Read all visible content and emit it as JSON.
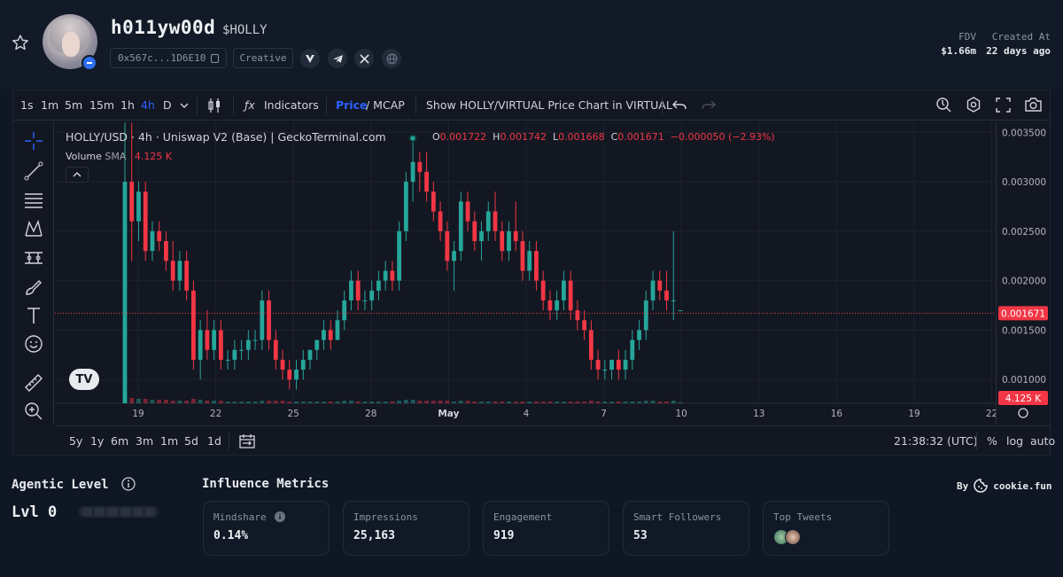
{
  "token": {
    "name": "h011yw00d",
    "ticker": "$HOLLY",
    "address": "0x567c...1D6E10",
    "tag": "Creative",
    "social_icons": [
      "virtuals-icon",
      "telegram-icon",
      "x-icon",
      "globe-icon"
    ]
  },
  "stats": {
    "fdv_label": "FDV",
    "fdv_value": "$1.66m",
    "created_label": "Created At",
    "created_value": "22 days ago"
  },
  "toolbar": {
    "intervals": [
      "1s",
      "1m",
      "5m",
      "15m",
      "1h",
      "4h",
      "D"
    ],
    "active_interval": "4h",
    "indicators_label": "Indicators",
    "price_label": "Price",
    "mcap_label": "/ MCAP",
    "show_virtual_label": "Show HOLLY/VIRTUAL Price Chart in VIRTUAL"
  },
  "legend": {
    "title": "HOLLY/USD · 4h · Uniswap V2 (Base) | GeckoTerminal.com",
    "o_label": "O",
    "o": "0.001722",
    "h_label": "H",
    "h": "0.001742",
    "l_label": "L",
    "l": "0.001668",
    "c_label": "C",
    "c": "0.001671",
    "change": "−0.000050 (−2.93%)",
    "volume_label": "Volume",
    "volume_ma": "SMA",
    "volume_value": "4.125 K"
  },
  "bottom_toolbar": {
    "ranges": [
      "5y",
      "1y",
      "6m",
      "3m",
      "1m",
      "5d",
      "1d"
    ],
    "time": "21:38:32 (UTC)",
    "pct": "%",
    "log": "log",
    "auto": "auto"
  },
  "colors": {
    "up": "#26a69a",
    "down": "#f23645",
    "accent": "#2962ff"
  },
  "chart_data": {
    "type": "candlestick",
    "title": "HOLLY/USD · 4h · Uniswap V2 (Base) | GeckoTerminal.com",
    "x_tick_labels": [
      "19",
      "22",
      "25",
      "28",
      "May",
      "4",
      "7",
      "10",
      "13",
      "16",
      "19",
      "22"
    ],
    "y_tick_labels": [
      "0.001000",
      "0.001500",
      "0.002000",
      "0.002500",
      "0.003000",
      "0.003500"
    ],
    "ylim": [
      0.00076,
      0.00361
    ],
    "last_price_label": "0.001671",
    "last_price": 0.001671,
    "volume_label": "4.125 K",
    "grid": true,
    "series": [
      {
        "name": "HOLLY/USD",
        "ohlc": [
          [
            0.0002,
            0.0036,
            0.0002,
            0.003
          ],
          [
            0.003,
            0.0036,
            0.0022,
            0.0026
          ],
          [
            0.0026,
            0.003,
            0.0024,
            0.0029
          ],
          [
            0.0029,
            0.003,
            0.0022,
            0.0023
          ],
          [
            0.0023,
            0.0026,
            0.0022,
            0.0025
          ],
          [
            0.0025,
            0.0026,
            0.0023,
            0.0024
          ],
          [
            0.0024,
            0.0025,
            0.0021,
            0.0022
          ],
          [
            0.0022,
            0.0024,
            0.0019,
            0.002
          ],
          [
            0.002,
            0.0023,
            0.0019,
            0.0022
          ],
          [
            0.0022,
            0.0023,
            0.0018,
            0.0019
          ],
          [
            0.0019,
            0.002,
            0.0011,
            0.0012
          ],
          [
            0.0012,
            0.0016,
            0.001,
            0.0015
          ],
          [
            0.0015,
            0.0017,
            0.0012,
            0.0013
          ],
          [
            0.0013,
            0.0016,
            0.0012,
            0.0015
          ],
          [
            0.0015,
            0.0016,
            0.0011,
            0.0012
          ],
          [
            0.0012,
            0.0013,
            0.0011,
            0.0012
          ],
          [
            0.0012,
            0.0014,
            0.0011,
            0.0013
          ],
          [
            0.0013,
            0.0014,
            0.0012,
            0.0013
          ],
          [
            0.0013,
            0.0015,
            0.0012,
            0.0014
          ],
          [
            0.0014,
            0.0015,
            0.0013,
            0.0014
          ],
          [
            0.0014,
            0.0019,
            0.0013,
            0.0018
          ],
          [
            0.0018,
            0.0019,
            0.0013,
            0.0014
          ],
          [
            0.0014,
            0.0015,
            0.0011,
            0.0012
          ],
          [
            0.0012,
            0.0013,
            0.001,
            0.0011
          ],
          [
            0.0011,
            0.0012,
            0.0009,
            0.001
          ],
          [
            0.001,
            0.0012,
            0.0009,
            0.0011
          ],
          [
            0.0011,
            0.0013,
            0.001,
            0.0012
          ],
          [
            0.0012,
            0.0013,
            0.0011,
            0.0013
          ],
          [
            0.0013,
            0.0014,
            0.0012,
            0.0014
          ],
          [
            0.0014,
            0.0016,
            0.0013,
            0.0015
          ],
          [
            0.0015,
            0.0016,
            0.0013,
            0.0014
          ],
          [
            0.0014,
            0.0017,
            0.0014,
            0.0016
          ],
          [
            0.0016,
            0.0019,
            0.0015,
            0.0018
          ],
          [
            0.0018,
            0.0021,
            0.0017,
            0.002
          ],
          [
            0.002,
            0.0021,
            0.0017,
            0.0018
          ],
          [
            0.0018,
            0.0019,
            0.0017,
            0.0018
          ],
          [
            0.0018,
            0.002,
            0.0017,
            0.0019
          ],
          [
            0.0019,
            0.0021,
            0.0018,
            0.002
          ],
          [
            0.002,
            0.0022,
            0.0019,
            0.0021
          ],
          [
            0.0021,
            0.0022,
            0.0019,
            0.002
          ],
          [
            0.002,
            0.0026,
            0.0019,
            0.0025
          ],
          [
            0.0025,
            0.0031,
            0.0024,
            0.003
          ],
          [
            0.003,
            0.0034,
            0.0028,
            0.0032
          ],
          [
            0.0032,
            0.0033,
            0.0029,
            0.0031
          ],
          [
            0.0031,
            0.0033,
            0.0028,
            0.0029
          ],
          [
            0.0029,
            0.003,
            0.0026,
            0.0027
          ],
          [
            0.0027,
            0.0028,
            0.0024,
            0.0025
          ],
          [
            0.0025,
            0.0026,
            0.0021,
            0.0022
          ],
          [
            0.0022,
            0.0024,
            0.0019,
            0.0023
          ],
          [
            0.0023,
            0.0029,
            0.0022,
            0.0028
          ],
          [
            0.0028,
            0.0029,
            0.0025,
            0.0026
          ],
          [
            0.0026,
            0.0027,
            0.0023,
            0.0024
          ],
          [
            0.0024,
            0.0026,
            0.0022,
            0.0025
          ],
          [
            0.0025,
            0.0028,
            0.0024,
            0.0027
          ],
          [
            0.0027,
            0.0029,
            0.0024,
            0.0025
          ],
          [
            0.0025,
            0.0026,
            0.0022,
            0.0023
          ],
          [
            0.0023,
            0.0026,
            0.0022,
            0.0025
          ],
          [
            0.0025,
            0.0028,
            0.0023,
            0.0024
          ],
          [
            0.0024,
            0.0025,
            0.002,
            0.0021
          ],
          [
            0.0021,
            0.0024,
            0.002,
            0.0023
          ],
          [
            0.0023,
            0.0024,
            0.0019,
            0.002
          ],
          [
            0.002,
            0.0021,
            0.0017,
            0.0018
          ],
          [
            0.0018,
            0.0019,
            0.0016,
            0.0017
          ],
          [
            0.0017,
            0.0019,
            0.0016,
            0.0018
          ],
          [
            0.0018,
            0.0021,
            0.0017,
            0.002
          ],
          [
            0.002,
            0.0021,
            0.0016,
            0.0017
          ],
          [
            0.0017,
            0.0018,
            0.0015,
            0.0016
          ],
          [
            0.0016,
            0.0017,
            0.0014,
            0.0015
          ],
          [
            0.0015,
            0.0016,
            0.0011,
            0.0012
          ],
          [
            0.0012,
            0.0013,
            0.001,
            0.0011
          ],
          [
            0.0011,
            0.0012,
            0.001,
            0.0011
          ],
          [
            0.0011,
            0.0012,
            0.001,
            0.0012
          ],
          [
            0.0012,
            0.0013,
            0.001,
            0.0011
          ],
          [
            0.0011,
            0.0013,
            0.001,
            0.0012
          ],
          [
            0.0012,
            0.0015,
            0.0011,
            0.0014
          ],
          [
            0.0014,
            0.0016,
            0.0013,
            0.0015
          ],
          [
            0.0015,
            0.0019,
            0.0014,
            0.0018
          ],
          [
            0.0018,
            0.0021,
            0.0017,
            0.002
          ],
          [
            0.002,
            0.0021,
            0.0018,
            0.0019
          ],
          [
            0.0019,
            0.0021,
            0.0017,
            0.0018
          ],
          [
            0.0018,
            0.0025,
            0.0016,
            0.0018
          ],
          [
            0.0017,
            0.0017,
            0.0017,
            0.0017
          ]
        ],
        "volume": [
          9,
          6,
          5,
          5,
          4,
          4,
          4,
          3,
          3,
          3,
          5,
          4,
          3,
          3,
          3,
          2,
          2,
          2,
          2,
          2,
          3,
          3,
          3,
          3,
          2,
          2,
          2,
          2,
          2,
          2,
          2,
          2,
          3,
          3,
          2,
          2,
          2,
          2,
          2,
          2,
          3,
          4,
          4,
          3,
          3,
          3,
          3,
          3,
          2,
          3,
          3,
          2,
          2,
          2,
          2,
          2,
          2,
          2,
          2,
          2,
          2,
          2,
          2,
          2,
          2,
          2,
          2,
          2,
          3,
          2,
          2,
          2,
          2,
          2,
          2,
          2,
          3,
          3,
          2,
          2,
          3,
          1
        ]
      }
    ]
  },
  "agentic": {
    "title": "Agentic Level",
    "level": "Lvl 0"
  },
  "influence": {
    "title": "Influence Metrics",
    "by_label": "By",
    "provider": "cookie.fun",
    "cards": [
      {
        "label": "Mindshare",
        "value": "0.14%"
      },
      {
        "label": "Impressions",
        "value": "25,163"
      },
      {
        "label": "Engagement",
        "value": "919"
      },
      {
        "label": "Smart Followers",
        "value": "53"
      },
      {
        "label": "Top Tweets",
        "value": ""
      }
    ]
  }
}
